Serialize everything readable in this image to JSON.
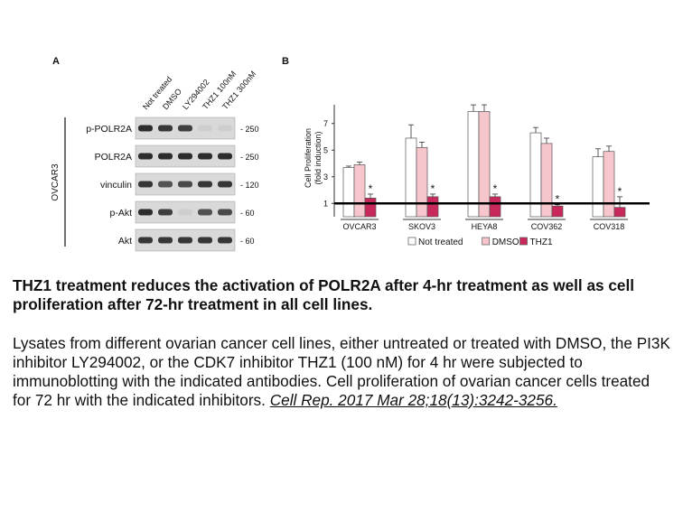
{
  "figure": {
    "panel_a_label": "A",
    "panel_b_label": "B",
    "blot": {
      "cell_line": "OVCAR3",
      "lanes": [
        "Not treated",
        "DMSO",
        "LY294002",
        "THZ1 100nM",
        "THZ1 300nM"
      ],
      "rows": [
        {
          "antibody": "p-POLR2A",
          "mw": "250",
          "intensity": [
            0.9,
            0.85,
            0.8,
            0.05,
            0.05
          ]
        },
        {
          "antibody": "POLR2A",
          "mw": "250",
          "intensity": [
            0.9,
            0.9,
            0.9,
            0.9,
            0.9
          ]
        },
        {
          "antibody": "vinculin",
          "mw": "120",
          "intensity": [
            0.85,
            0.7,
            0.75,
            0.85,
            0.85
          ]
        },
        {
          "antibody": "p-Akt",
          "mw": "60",
          "intensity": [
            0.9,
            0.8,
            0.05,
            0.7,
            0.75
          ]
        },
        {
          "antibody": "Akt",
          "mw": "60",
          "intensity": [
            0.85,
            0.85,
            0.85,
            0.85,
            0.85
          ]
        }
      ]
    }
  },
  "chart_data": {
    "type": "bar",
    "ylabel": "Cell Proliferation (fold induction)",
    "ylim": [
      0,
      8
    ],
    "yticks": [
      1,
      3,
      5,
      7
    ],
    "categories": [
      "OVCAR3",
      "SKOV3",
      "HEYA8",
      "COV362",
      "COV318"
    ],
    "series": [
      {
        "name": "Not treated",
        "color": "#ffffff",
        "values": [
          3.7,
          5.9,
          7.9,
          6.3,
          4.5
        ],
        "errors": [
          0.1,
          1.0,
          0.5,
          0.4,
          0.6
        ]
      },
      {
        "name": "DMSO",
        "color": "#f6c6cc",
        "values": [
          3.9,
          5.2,
          7.9,
          5.5,
          4.9
        ],
        "errors": [
          0.2,
          0.4,
          0.5,
          0.4,
          0.4
        ]
      },
      {
        "name": "THZ1",
        "color": "#c8285a",
        "values": [
          1.4,
          1.5,
          1.5,
          0.8,
          0.7
        ],
        "errors": [
          0.3,
          0.2,
          0.2,
          0.1,
          0.8
        ]
      }
    ],
    "significance_marker": "*",
    "reference_line": 1
  },
  "caption": {
    "title": "THZ1 treatment reduces the activation of POLR2A after 4-hr treatment as well as cell proliferation after 72-hr treatment in all cell lines.",
    "body": "Lysates from different ovarian cancer cell lines, either untreated or treated with DMSO, the PI3K inhibitor LY294002, or the CDK7 inhibitor THZ1 (100 nM) for 4 hr were subjected to immunoblotting with the indicated antibodies. Cell proliferation of ovarian cancer cells treated for 72 hr with the indicated inhibitors.",
    "citation": "Cell Rep. 2017 Mar 28;18(13):3242-3256."
  }
}
